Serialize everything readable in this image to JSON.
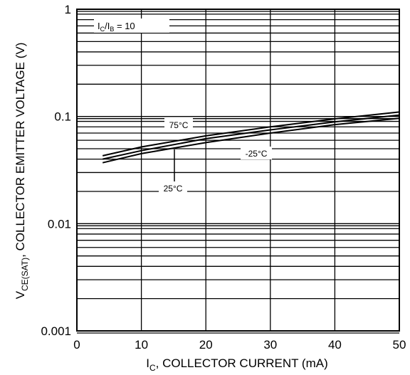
{
  "chart_data": {
    "type": "line",
    "title": "",
    "xlabel": {
      "main": "I",
      "sub": "C",
      "rest": ", COLLECTOR CURRENT (mA)"
    },
    "ylabel": {
      "main": "V",
      "sub": "CE(SAT)",
      "rest": ", COLLECTOR EMITTER VOLTAGE (V)"
    },
    "xlim": [
      0,
      50
    ],
    "ylim": [
      0.001,
      1
    ],
    "yscale": "log",
    "grid": true,
    "xticks": [
      0,
      10,
      20,
      30,
      40,
      50
    ],
    "xtick_labels": [
      "0",
      "10",
      "20",
      "30",
      "40",
      "50"
    ],
    "yticks": [
      0.001,
      0.01,
      0.1,
      1
    ],
    "ytick_labels": [
      "0.001",
      "0.01",
      "0.1",
      "1"
    ],
    "condition_label": {
      "a": "I",
      "a_sub": "C",
      "slash": "/I",
      "b_sub": "B",
      "rest": " = 10"
    },
    "series": [
      {
        "name": "75°C",
        "x": [
          4,
          10,
          20,
          30,
          40,
          50
        ],
        "y": [
          0.043,
          0.052,
          0.066,
          0.08,
          0.095,
          0.11
        ]
      },
      {
        "name": "25°C",
        "x": [
          4,
          10,
          20,
          30,
          40,
          50
        ],
        "y": [
          0.04,
          0.048,
          0.062,
          0.075,
          0.089,
          0.103
        ]
      },
      {
        "name": "-25°C",
        "x": [
          4,
          10,
          20,
          30,
          40,
          50
        ],
        "y": [
          0.037,
          0.045,
          0.057,
          0.07,
          0.084,
          0.096
        ]
      }
    ],
    "series_labels": [
      "75°C",
      "25°C",
      "-25°C"
    ]
  }
}
